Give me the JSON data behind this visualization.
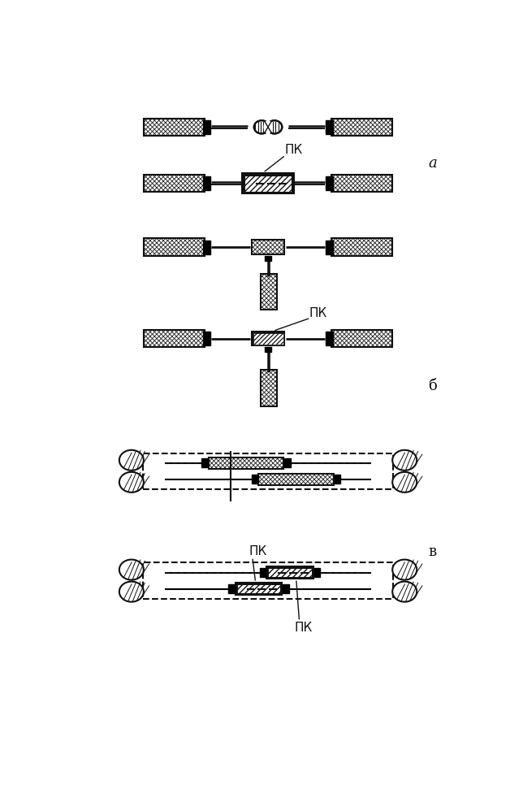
{
  "bg_color": "#ffffff",
  "line_color": "#111111",
  "label_a": "a",
  "label_b": "б",
  "label_v": "в",
  "label_pk": "ПК",
  "fig_width": 6.44,
  "fig_height": 9.82,
  "dpi": 100
}
